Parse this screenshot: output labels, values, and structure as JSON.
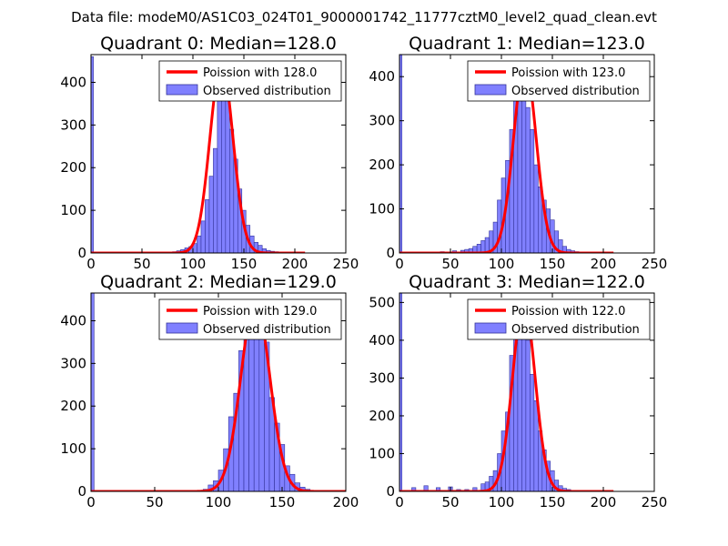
{
  "figure": {
    "suptitle": "Data file: modeM0/AS1C03_024T01_9000001742_11777cztM0_level2_quad_clean.evt"
  },
  "colors": {
    "bar_fill": "#8080ff",
    "bar_edge": "#333399",
    "line": "#ff0000",
    "axes": "#000000",
    "background": "#ffffff"
  },
  "chart_data": [
    {
      "type": "bar",
      "title": "Quadrant 0: Median=128.0",
      "xlabel": "",
      "ylabel": "",
      "xlim": [
        0,
        250
      ],
      "ylim": [
        0,
        465
      ],
      "xticks": [
        "0",
        "50",
        "100",
        "150",
        "200",
        "250"
      ],
      "yticks": [
        "0",
        "100",
        "200",
        "300",
        "400"
      ],
      "legend_position": "top-right",
      "legend": [
        "Poission with 128.0",
        "Observed distribution"
      ],
      "poisson_mean": 128.0,
      "poisson_peak": 445,
      "zero_bin": 460,
      "bin_width": 4,
      "bins": [
        {
          "x": 80,
          "count": 3
        },
        {
          "x": 84,
          "count": 5
        },
        {
          "x": 88,
          "count": 8
        },
        {
          "x": 92,
          "count": 12
        },
        {
          "x": 96,
          "count": 15
        },
        {
          "x": 100,
          "count": 22
        },
        {
          "x": 104,
          "count": 40
        },
        {
          "x": 108,
          "count": 75
        },
        {
          "x": 112,
          "count": 125
        },
        {
          "x": 116,
          "count": 180
        },
        {
          "x": 120,
          "count": 245
        },
        {
          "x": 124,
          "count": 370
        },
        {
          "x": 128,
          "count": 440
        },
        {
          "x": 132,
          "count": 390
        },
        {
          "x": 136,
          "count": 290
        },
        {
          "x": 140,
          "count": 220
        },
        {
          "x": 144,
          "count": 150
        },
        {
          "x": 148,
          "count": 100
        },
        {
          "x": 152,
          "count": 65
        },
        {
          "x": 156,
          "count": 40
        },
        {
          "x": 160,
          "count": 25
        },
        {
          "x": 164,
          "count": 18
        },
        {
          "x": 168,
          "count": 10
        },
        {
          "x": 172,
          "count": 6
        },
        {
          "x": 176,
          "count": 4
        },
        {
          "x": 180,
          "count": 3
        },
        {
          "x": 184,
          "count": 2
        }
      ]
    },
    {
      "type": "bar",
      "title": "Quadrant 1: Median=123.0",
      "xlabel": "",
      "ylabel": "",
      "xlim": [
        0,
        250
      ],
      "ylim": [
        0,
        450
      ],
      "xticks": [
        "0",
        "50",
        "100",
        "150",
        "200",
        "250"
      ],
      "yticks": [
        "0",
        "100",
        "200",
        "300",
        "400"
      ],
      "legend_position": "top-right",
      "legend": [
        "Poission with 123.0",
        "Observed distribution"
      ],
      "poisson_mean": 123.0,
      "poisson_peak": 430,
      "zero_bin": 450,
      "bin_width": 4,
      "bins": [
        {
          "x": 40,
          "count": 3
        },
        {
          "x": 52,
          "count": 5
        },
        {
          "x": 60,
          "count": 6
        },
        {
          "x": 64,
          "count": 8
        },
        {
          "x": 68,
          "count": 10
        },
        {
          "x": 72,
          "count": 15
        },
        {
          "x": 76,
          "count": 20
        },
        {
          "x": 80,
          "count": 28
        },
        {
          "x": 84,
          "count": 35
        },
        {
          "x": 88,
          "count": 50
        },
        {
          "x": 92,
          "count": 70
        },
        {
          "x": 96,
          "count": 120
        },
        {
          "x": 100,
          "count": 170
        },
        {
          "x": 104,
          "count": 210
        },
        {
          "x": 108,
          "count": 280
        },
        {
          "x": 112,
          "count": 380
        },
        {
          "x": 116,
          "count": 430
        },
        {
          "x": 120,
          "count": 420
        },
        {
          "x": 124,
          "count": 330
        },
        {
          "x": 128,
          "count": 280
        },
        {
          "x": 132,
          "count": 200
        },
        {
          "x": 136,
          "count": 150
        },
        {
          "x": 140,
          "count": 120
        },
        {
          "x": 144,
          "count": 100
        },
        {
          "x": 148,
          "count": 75
        },
        {
          "x": 152,
          "count": 50
        },
        {
          "x": 156,
          "count": 30
        },
        {
          "x": 160,
          "count": 15
        },
        {
          "x": 164,
          "count": 8
        },
        {
          "x": 168,
          "count": 5
        },
        {
          "x": 172,
          "count": 3
        }
      ]
    },
    {
      "type": "bar",
      "title": "Quadrant 2: Median=129.0",
      "xlabel": "",
      "ylabel": "",
      "xlim": [
        0,
        200
      ],
      "ylim": [
        0,
        465
      ],
      "xticks": [
        "0",
        "50",
        "100",
        "150",
        "200"
      ],
      "yticks": [
        "0",
        "100",
        "200",
        "300",
        "400"
      ],
      "legend_position": "top-right",
      "legend": [
        "Poission with 129.0",
        "Observed distribution"
      ],
      "poisson_mean": 129.0,
      "poisson_peak": 445,
      "zero_bin": 465,
      "bin_width": 4,
      "bins": [
        {
          "x": 88,
          "count": 5
        },
        {
          "x": 92,
          "count": 15
        },
        {
          "x": 96,
          "count": 25
        },
        {
          "x": 100,
          "count": 50
        },
        {
          "x": 104,
          "count": 100
        },
        {
          "x": 108,
          "count": 175
        },
        {
          "x": 112,
          "count": 230
        },
        {
          "x": 116,
          "count": 330
        },
        {
          "x": 120,
          "count": 380
        },
        {
          "x": 124,
          "count": 440
        },
        {
          "x": 128,
          "count": 440
        },
        {
          "x": 132,
          "count": 410
        },
        {
          "x": 136,
          "count": 350
        },
        {
          "x": 140,
          "count": 220
        },
        {
          "x": 144,
          "count": 160
        },
        {
          "x": 148,
          "count": 110
        },
        {
          "x": 152,
          "count": 60
        },
        {
          "x": 156,
          "count": 40
        },
        {
          "x": 160,
          "count": 20
        },
        {
          "x": 164,
          "count": 10
        },
        {
          "x": 168,
          "count": 5
        }
      ]
    },
    {
      "type": "bar",
      "title": "Quadrant 3: Median=122.0",
      "xlabel": "",
      "ylabel": "",
      "xlim": [
        0,
        250
      ],
      "ylim": [
        0,
        525
      ],
      "xticks": [
        "0",
        "50",
        "100",
        "150",
        "200",
        "250"
      ],
      "yticks": [
        "0",
        "100",
        "200",
        "300",
        "400",
        "500"
      ],
      "legend_position": "top-right",
      "legend": [
        "Poission with 122.0",
        "Observed distribution"
      ],
      "poisson_mean": 122.0,
      "poisson_peak": 500,
      "zero_bin": 525,
      "bin_width": 4,
      "bins": [
        {
          "x": 12,
          "count": 10
        },
        {
          "x": 24,
          "count": 15
        },
        {
          "x": 36,
          "count": 10
        },
        {
          "x": 48,
          "count": 12
        },
        {
          "x": 56,
          "count": 5
        },
        {
          "x": 64,
          "count": 5
        },
        {
          "x": 72,
          "count": 10
        },
        {
          "x": 80,
          "count": 20
        },
        {
          "x": 84,
          "count": 25
        },
        {
          "x": 88,
          "count": 40
        },
        {
          "x": 92,
          "count": 55
        },
        {
          "x": 96,
          "count": 100
        },
        {
          "x": 100,
          "count": 160
        },
        {
          "x": 104,
          "count": 210
        },
        {
          "x": 108,
          "count": 360
        },
        {
          "x": 112,
          "count": 500
        },
        {
          "x": 116,
          "count": 500
        },
        {
          "x": 120,
          "count": 480
        },
        {
          "x": 124,
          "count": 400
        },
        {
          "x": 128,
          "count": 310
        },
        {
          "x": 132,
          "count": 240
        },
        {
          "x": 136,
          "count": 160
        },
        {
          "x": 140,
          "count": 110
        },
        {
          "x": 144,
          "count": 80
        },
        {
          "x": 148,
          "count": 55
        },
        {
          "x": 152,
          "count": 30
        },
        {
          "x": 156,
          "count": 15
        },
        {
          "x": 160,
          "count": 8
        },
        {
          "x": 164,
          "count": 5
        }
      ]
    }
  ]
}
